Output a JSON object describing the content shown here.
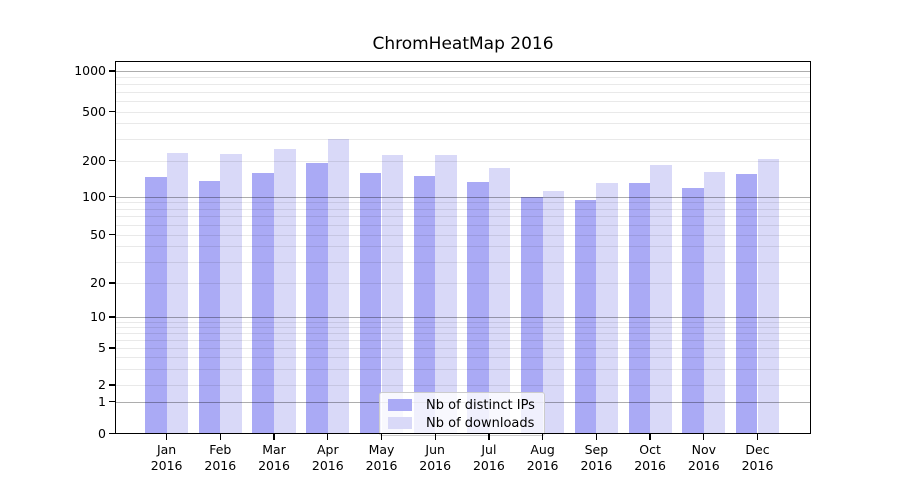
{
  "title": "ChromHeatMap 2016",
  "chart_data": {
    "type": "bar",
    "title": "ChromHeatMap 2016",
    "categories": [
      "Jan 2016",
      "Feb 2016",
      "Mar 2016",
      "Apr 2016",
      "May 2016",
      "Jun 2016",
      "Jul 2016",
      "Aug 2016",
      "Sep 2016",
      "Oct 2016",
      "Nov 2016",
      "Dec 2016"
    ],
    "series": [
      {
        "name": "Nb of distinct IPs",
        "color": "#aaaaf5",
        "values": [
          146,
          136,
          156,
          192,
          158,
          148,
          132,
          100,
          94,
          130,
          118,
          153
        ]
      },
      {
        "name": "Nb of downloads",
        "color": "#d9d9f8",
        "values": [
          231,
          224,
          250,
          300,
          222,
          220,
          172,
          111,
          130,
          182,
          160,
          205
        ]
      }
    ],
    "xlabel": "",
    "ylabel": "",
    "yscale": "symlog",
    "yticks": [
      0,
      1,
      2,
      5,
      10,
      20,
      50,
      100,
      200,
      500,
      1000
    ],
    "ylim": [
      0,
      1400
    ],
    "grid": "on",
    "legend_position": "lower center inside plot"
  },
  "colors": {
    "background": "#ffffff",
    "axis": "#000000",
    "grid_minor": "#e9e9e9",
    "grid_major": "#b3b3b3"
  }
}
